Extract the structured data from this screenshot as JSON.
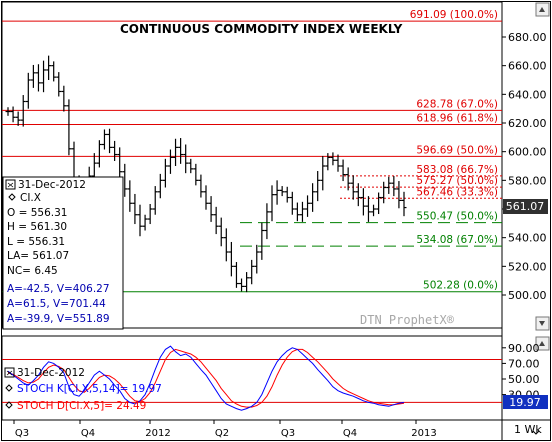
{
  "chart_data": {
    "type": "ohlc",
    "title": "CONTINUOUS COMMODITY INDEX WEEKLY",
    "watermark": "DTN ProphetX®",
    "period_label": "1 Wk",
    "symbol": "CI.X",
    "colors": {
      "bars": "#000000",
      "red": "#e00000",
      "green": "#008000",
      "stoch_k": "#0000ff",
      "stoch_d": "#ff0000",
      "blue_text": "#0000b0",
      "last_box": "#303030",
      "stoch_box": "#1030c0"
    },
    "ylim": [
      482,
      700
    ],
    "y_ticks": [
      "680.00",
      "660.00",
      "640.00",
      "620.00",
      "600.00",
      "580.00",
      "560.00",
      "540.00",
      "520.00",
      "500.00"
    ],
    "x_ticks": [
      "Q3",
      "Q4",
      "2012",
      "Q2",
      "Q3",
      "Q4",
      "2013"
    ],
    "last_price_label": "561.07",
    "fib_levels": [
      {
        "value": 691.09,
        "label": "691.09 (100.0%)",
        "color": "red",
        "style": "solid"
      },
      {
        "value": 628.78,
        "label": "628.78 (67.0%)",
        "color": "red",
        "style": "solid"
      },
      {
        "value": 618.96,
        "label": "618.96 (61.8%)",
        "color": "red",
        "style": "solid"
      },
      {
        "value": 596.69,
        "label": "596.69 (50.0%)",
        "color": "red",
        "style": "solid"
      },
      {
        "value": 583.08,
        "label": "583.08 (66.7%)",
        "color": "red",
        "style": "dotted"
      },
      {
        "value": 575.27,
        "label": "575.27 (50.0%)",
        "color": "red",
        "style": "dotted"
      },
      {
        "value": 567.46,
        "label": "567.46 (33.3%)",
        "color": "red",
        "style": "dotted"
      },
      {
        "value": 550.47,
        "label": "550.47 (50.0%)",
        "color": "green",
        "style": "dashed"
      },
      {
        "value": 534.08,
        "label": "534.08 (67.0%)",
        "color": "green",
        "style": "dashed"
      },
      {
        "value": 502.28,
        "label": "502.28 (0.0%)",
        "color": "green",
        "style": "solid"
      }
    ],
    "closes": [
      628,
      624,
      622,
      635,
      650,
      655,
      648,
      657,
      660,
      652,
      642,
      632,
      602,
      578,
      568,
      574,
      583,
      592,
      605,
      612,
      603,
      598,
      586,
      574,
      564,
      556,
      548,
      553,
      560,
      572,
      580,
      590,
      596,
      603,
      598,
      592,
      588,
      580,
      572,
      564,
      556,
      548,
      540,
      530,
      520,
      508,
      506,
      512,
      520,
      530,
      545,
      558,
      570,
      573,
      572,
      568,
      560,
      556,
      560,
      564,
      572,
      580,
      590,
      596,
      594,
      590,
      584,
      578,
      572,
      568,
      562,
      558,
      560,
      568,
      575,
      578,
      574,
      566,
      561
    ]
  },
  "info_box": {
    "date": "31-Dec-2012",
    "symbol": "CI.X",
    "open": "O = 556.31",
    "high": "H = 561.30",
    "low": "L = 556.31",
    "last": "LA= 561.07",
    "net_change": "NC= 6.45",
    "a1": "A=-42.5, V=406.27",
    "a2": "A=61.5, V=701.44",
    "a3": "A=-39.9, V=551.89"
  },
  "stoch_panel": {
    "date": "31-Dec-2012",
    "k_label": "STOCH K[CI.X,5,14]= 19.97",
    "d_label": "STOCH D[CI.X,5]= 24.49",
    "y_ticks": [
      "90.00",
      "70.00",
      "50.00",
      "30.00"
    ],
    "last_value": "19.97",
    "ylim": [
      0,
      100
    ],
    "k_values": [
      60,
      55,
      50,
      45,
      42,
      48,
      55,
      65,
      72,
      70,
      65,
      58,
      40,
      30,
      28,
      35,
      45,
      55,
      60,
      55,
      50,
      42,
      35,
      25,
      20,
      18,
      22,
      30,
      45,
      62,
      78,
      88,
      92,
      85,
      80,
      82,
      78,
      70,
      62,
      55,
      45,
      35,
      25,
      18,
      15,
      12,
      10,
      12,
      15,
      20,
      30,
      45,
      60,
      72,
      80,
      86,
      90,
      88,
      82,
      76,
      70,
      62,
      55,
      48,
      40,
      35,
      32,
      30,
      28,
      25,
      22,
      20,
      19,
      17,
      16,
      15,
      17,
      19,
      20
    ],
    "d_values": [
      58,
      56,
      52,
      48,
      45,
      46,
      50,
      58,
      65,
      68,
      66,
      62,
      52,
      42,
      35,
      33,
      38,
      45,
      52,
      55,
      54,
      50,
      44,
      36,
      28,
      22,
      21,
      25,
      33,
      45,
      60,
      75,
      84,
      88,
      86,
      84,
      82,
      78,
      72,
      64,
      56,
      48,
      38,
      30,
      22,
      18,
      15,
      14,
      14,
      16,
      20,
      28,
      40,
      55,
      68,
      78,
      85,
      88,
      88,
      84,
      78,
      72,
      65,
      58,
      50,
      44,
      38,
      34,
      31,
      28,
      25,
      22,
      20,
      19,
      18,
      17,
      17,
      18,
      19
    ]
  }
}
